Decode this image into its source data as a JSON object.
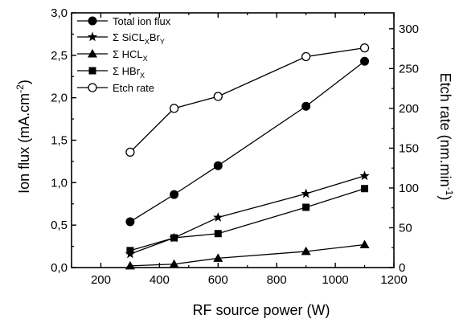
{
  "chart_data": {
    "type": "line",
    "x": [
      300,
      450,
      600,
      900,
      1100
    ],
    "xlabel": "RF source power (W)",
    "ylabel_left": "Ion flux (mA.cm",
    "ylabel_left_sup": "-2",
    "ylabel_left_close": ")",
    "ylabel_right": "Etch rate (nm.min",
    "ylabel_right_sup": "-1",
    "ylabel_right_close": ")",
    "xlim": [
      100,
      1200
    ],
    "ylim_left": [
      0,
      3.0
    ],
    "ylim_right": [
      0,
      320
    ],
    "x_ticks": [
      "200",
      "400",
      "600",
      "800",
      "1000",
      "1200"
    ],
    "y_left_ticks": [
      "0,0",
      "0,5",
      "1,0",
      "1,5",
      "2,0",
      "2,5",
      "3,0"
    ],
    "y_right_ticks": [
      "0",
      "50",
      "100",
      "150",
      "200",
      "250",
      "300"
    ],
    "legend_position": "top-left",
    "grid": false,
    "series": [
      {
        "name": "Total ion flux",
        "axis": "left",
        "marker": "circle-filled",
        "values": [
          0.54,
          0.86,
          1.2,
          1.9,
          2.43
        ]
      },
      {
        "name_prefix": "Σ SiCL",
        "name_sub1": "X",
        "name_mid": "Br",
        "name_sub2": "Y",
        "axis": "left",
        "marker": "star",
        "values": [
          0.16,
          0.35,
          0.59,
          0.87,
          1.08
        ]
      },
      {
        "name_prefix": "Σ HCL",
        "name_sub1": "X",
        "axis": "left",
        "marker": "triangle",
        "values": [
          0.02,
          0.04,
          0.11,
          0.19,
          0.27
        ]
      },
      {
        "name_prefix": "Σ HBr",
        "name_sub1": "X",
        "axis": "left",
        "marker": "square",
        "values": [
          0.2,
          0.35,
          0.4,
          0.71,
          0.93
        ]
      },
      {
        "name": "Etch rate",
        "axis": "right",
        "marker": "circle-open",
        "values": [
          145,
          200,
          215,
          265,
          276
        ]
      }
    ]
  }
}
